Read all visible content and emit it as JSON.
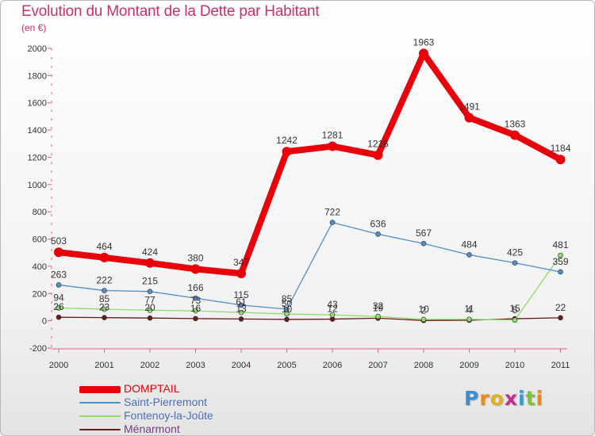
{
  "header": {
    "title": "Evolution du Montant de la Dette par Habitant",
    "unit": "(en €)"
  },
  "brand": {
    "letters": [
      "P",
      "r",
      "o",
      "x",
      "i",
      "t",
      "i"
    ],
    "colors": [
      "#3a8fd0",
      "#e88b1a",
      "#e0b020",
      "#c42e8e",
      "#2aa0d8",
      "#7cc23a",
      "#e88b1a"
    ]
  },
  "chart_data": {
    "type": "line",
    "title": "Evolution du Montant de la Dette par Habitant",
    "ylabel": "(en €)",
    "xlabel": "",
    "x": [
      "2000",
      "2001",
      "2002",
      "2003",
      "2004",
      "2005",
      "2006",
      "2007",
      "2008",
      "2009",
      "2010",
      "2011"
    ],
    "ylim": [
      -200,
      2000
    ],
    "yticks": [
      "-200",
      "0",
      "200",
      "400",
      "600",
      "800",
      "1000",
      "1200",
      "1400",
      "1600",
      "1800",
      "2000"
    ],
    "grid": false,
    "legend_position": "bottom-left",
    "series": [
      {
        "name": "DOMPTAIL",
        "color": "#e8000b",
        "emphasis": "thick",
        "values": [
          503,
          464,
          424,
          380,
          347,
          1242,
          1281,
          1216,
          1963,
          1491,
          1363,
          1184
        ],
        "labels": [
          "503",
          "464",
          "424",
          "380",
          "347",
          "1242",
          "1281",
          "1216",
          "1963",
          "1491",
          "1363",
          "1184"
        ]
      },
      {
        "name": "Saint-Pierremont",
        "color": "#4f8fc9",
        "emphasis": "thin",
        "values": [
          263,
          222,
          215,
          166,
          115,
          85,
          722,
          636,
          567,
          484,
          425,
          359
        ],
        "labels": [
          "263",
          "222",
          "215",
          "166",
          "115",
          "85",
          "722",
          "636",
          "567",
          "484",
          "425",
          "359"
        ]
      },
      {
        "name": "Fontenoy-la-Joûte",
        "color": "#8fdc6a",
        "emphasis": "thin",
        "values": [
          94,
          85,
          77,
          73,
          61,
          50,
          43,
          32,
          10,
          11,
          5,
          481
        ],
        "labels": [
          "94",
          "85",
          "77",
          "73",
          "61",
          "50",
          "43",
          "32",
          "10",
          "11",
          "5",
          "481"
        ]
      },
      {
        "name": "Ménarmont",
        "color": "#6b1a1a",
        "emphasis": "thin",
        "values": [
          26,
          23,
          20,
          16,
          13,
          10,
          12,
          19,
          2,
          4,
          15,
          22
        ],
        "labels": [
          "26",
          "23",
          "20",
          "16",
          "13",
          "10",
          "12",
          "19",
          "2",
          "4",
          "15",
          "22"
        ]
      }
    ]
  }
}
